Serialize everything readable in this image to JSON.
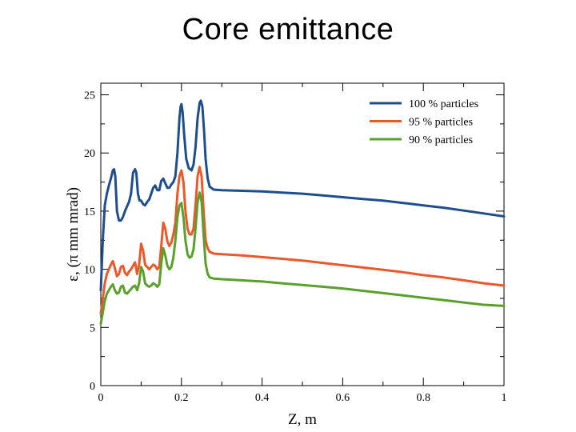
{
  "slide": {
    "title": "Core emittance"
  },
  "chart_data": {
    "type": "line",
    "title": "Core emittance",
    "xlabel": "Z, m",
    "ylabel": "ε, (π mm mrad)",
    "xlim": [
      0,
      1
    ],
    "ylim": [
      0,
      26
    ],
    "xticks": [
      0,
      0.2,
      0.4,
      0.6,
      0.8,
      1
    ],
    "xtick_labels": [
      "0",
      "0.2",
      "0.4",
      "0.6",
      "0.8",
      "1"
    ],
    "yticks": [
      0,
      5,
      10,
      15,
      20,
      25
    ],
    "ytick_labels": [
      "0",
      "5",
      "10",
      "15",
      "20",
      "25"
    ],
    "grid": false,
    "legend_position": "top-right",
    "series": [
      {
        "name": "100 % particles",
        "color": "#1f4e8c",
        "points": [
          [
            0,
            8.2
          ],
          [
            0.005,
            12.5
          ],
          [
            0.01,
            15.5
          ],
          [
            0.015,
            16.5
          ],
          [
            0.02,
            17.2
          ],
          [
            0.025,
            17.8
          ],
          [
            0.03,
            18.5
          ],
          [
            0.033,
            18.6
          ],
          [
            0.036,
            18.0
          ],
          [
            0.04,
            15.0
          ],
          [
            0.045,
            14.2
          ],
          [
            0.05,
            14.2
          ],
          [
            0.055,
            14.5
          ],
          [
            0.06,
            15.0
          ],
          [
            0.07,
            15.8
          ],
          [
            0.075,
            16.5
          ],
          [
            0.08,
            18.3
          ],
          [
            0.085,
            18.6
          ],
          [
            0.088,
            18.3
          ],
          [
            0.092,
            16.5
          ],
          [
            0.096,
            15.9
          ],
          [
            0.1,
            15.9
          ],
          [
            0.105,
            15.6
          ],
          [
            0.11,
            15.5
          ],
          [
            0.115,
            15.8
          ],
          [
            0.12,
            16.0
          ],
          [
            0.125,
            16.5
          ],
          [
            0.13,
            17.0
          ],
          [
            0.135,
            17.2
          ],
          [
            0.14,
            16.8
          ],
          [
            0.145,
            16.8
          ],
          [
            0.15,
            17.6
          ],
          [
            0.155,
            17.8
          ],
          [
            0.16,
            17.4
          ],
          [
            0.165,
            17.0
          ],
          [
            0.17,
            17.0
          ],
          [
            0.175,
            17.3
          ],
          [
            0.18,
            17.5
          ],
          [
            0.185,
            18.0
          ],
          [
            0.19,
            20.0
          ],
          [
            0.195,
            23.0
          ],
          [
            0.198,
            24.0
          ],
          [
            0.2,
            24.2
          ],
          [
            0.203,
            23.5
          ],
          [
            0.207,
            21.5
          ],
          [
            0.212,
            19.5
          ],
          [
            0.218,
            18.7
          ],
          [
            0.225,
            18.5
          ],
          [
            0.23,
            19.0
          ],
          [
            0.235,
            20.5
          ],
          [
            0.24,
            23.0
          ],
          [
            0.245,
            24.3
          ],
          [
            0.248,
            24.5
          ],
          [
            0.252,
            24.0
          ],
          [
            0.256,
            22.0
          ],
          [
            0.26,
            19.5
          ],
          [
            0.265,
            17.8
          ],
          [
            0.27,
            17.1
          ],
          [
            0.28,
            16.85
          ],
          [
            0.3,
            16.8
          ],
          [
            0.35,
            16.75
          ],
          [
            0.4,
            16.7
          ],
          [
            0.45,
            16.6
          ],
          [
            0.5,
            16.5
          ],
          [
            0.55,
            16.35
          ],
          [
            0.6,
            16.2
          ],
          [
            0.65,
            16.05
          ],
          [
            0.7,
            15.9
          ],
          [
            0.75,
            15.7
          ],
          [
            0.8,
            15.5
          ],
          [
            0.85,
            15.3
          ],
          [
            0.9,
            15.05
          ],
          [
            0.95,
            14.8
          ],
          [
            1.0,
            14.55
          ]
        ]
      },
      {
        "name": "95 % particles",
        "color": "#e85a2b",
        "points": [
          [
            0,
            6.2
          ],
          [
            0.005,
            7.5
          ],
          [
            0.01,
            8.8
          ],
          [
            0.015,
            9.6
          ],
          [
            0.02,
            10.0
          ],
          [
            0.025,
            10.4
          ],
          [
            0.03,
            10.7
          ],
          [
            0.035,
            10.1
          ],
          [
            0.04,
            9.4
          ],
          [
            0.045,
            9.6
          ],
          [
            0.05,
            10.2
          ],
          [
            0.055,
            10.3
          ],
          [
            0.06,
            9.7
          ],
          [
            0.065,
            9.5
          ],
          [
            0.07,
            9.8
          ],
          [
            0.075,
            10.0
          ],
          [
            0.08,
            10.3
          ],
          [
            0.085,
            10.6
          ],
          [
            0.09,
            9.6
          ],
          [
            0.095,
            10.4
          ],
          [
            0.1,
            12.2
          ],
          [
            0.105,
            11.6
          ],
          [
            0.11,
            10.4
          ],
          [
            0.115,
            10.2
          ],
          [
            0.12,
            10.0
          ],
          [
            0.125,
            10.2
          ],
          [
            0.13,
            10.4
          ],
          [
            0.135,
            10.3
          ],
          [
            0.14,
            10.0
          ],
          [
            0.145,
            10.2
          ],
          [
            0.15,
            12.0
          ],
          [
            0.155,
            14.0
          ],
          [
            0.16,
            13.5
          ],
          [
            0.165,
            12.4
          ],
          [
            0.17,
            12.0
          ],
          [
            0.175,
            12.3
          ],
          [
            0.18,
            13.0
          ],
          [
            0.185,
            14.0
          ],
          [
            0.19,
            16.5
          ],
          [
            0.195,
            18.0
          ],
          [
            0.2,
            18.5
          ],
          [
            0.205,
            17.5
          ],
          [
            0.21,
            15.0
          ],
          [
            0.215,
            13.5
          ],
          [
            0.22,
            13.0
          ],
          [
            0.225,
            13.0
          ],
          [
            0.23,
            13.5
          ],
          [
            0.235,
            15.5
          ],
          [
            0.24,
            18.0
          ],
          [
            0.245,
            18.8
          ],
          [
            0.25,
            18.0
          ],
          [
            0.255,
            15.0
          ],
          [
            0.26,
            12.5
          ],
          [
            0.265,
            11.8
          ],
          [
            0.27,
            11.5
          ],
          [
            0.28,
            11.35
          ],
          [
            0.3,
            11.3
          ],
          [
            0.35,
            11.2
          ],
          [
            0.4,
            11.05
          ],
          [
            0.45,
            10.9
          ],
          [
            0.5,
            10.75
          ],
          [
            0.55,
            10.55
          ],
          [
            0.6,
            10.35
          ],
          [
            0.65,
            10.15
          ],
          [
            0.7,
            9.95
          ],
          [
            0.75,
            9.75
          ],
          [
            0.8,
            9.5
          ],
          [
            0.85,
            9.3
          ],
          [
            0.9,
            9.05
          ],
          [
            0.95,
            8.8
          ],
          [
            1.0,
            8.6
          ]
        ]
      },
      {
        "name": "90 % particles",
        "color": "#5aa02c",
        "points": [
          [
            0,
            5.3
          ],
          [
            0.005,
            6.3
          ],
          [
            0.01,
            7.3
          ],
          [
            0.015,
            7.9
          ],
          [
            0.02,
            8.2
          ],
          [
            0.025,
            8.5
          ],
          [
            0.03,
            8.7
          ],
          [
            0.035,
            8.2
          ],
          [
            0.04,
            7.9
          ],
          [
            0.045,
            8.0
          ],
          [
            0.05,
            8.5
          ],
          [
            0.055,
            8.6
          ],
          [
            0.06,
            8.0
          ],
          [
            0.065,
            7.9
          ],
          [
            0.07,
            8.1
          ],
          [
            0.075,
            8.3
          ],
          [
            0.08,
            8.5
          ],
          [
            0.085,
            8.6
          ],
          [
            0.09,
            8.2
          ],
          [
            0.095,
            8.8
          ],
          [
            0.1,
            10.2
          ],
          [
            0.105,
            9.8
          ],
          [
            0.11,
            8.8
          ],
          [
            0.115,
            8.6
          ],
          [
            0.12,
            8.5
          ],
          [
            0.125,
            8.6
          ],
          [
            0.13,
            8.8
          ],
          [
            0.135,
            8.7
          ],
          [
            0.14,
            8.5
          ],
          [
            0.145,
            8.7
          ],
          [
            0.15,
            10.5
          ],
          [
            0.155,
            11.8
          ],
          [
            0.16,
            11.2
          ],
          [
            0.165,
            10.3
          ],
          [
            0.17,
            10.0
          ],
          [
            0.175,
            10.2
          ],
          [
            0.18,
            11.0
          ],
          [
            0.185,
            12.5
          ],
          [
            0.19,
            14.5
          ],
          [
            0.195,
            15.5
          ],
          [
            0.2,
            15.7
          ],
          [
            0.205,
            14.5
          ],
          [
            0.21,
            12.5
          ],
          [
            0.215,
            11.3
          ],
          [
            0.22,
            11.0
          ],
          [
            0.225,
            11.1
          ],
          [
            0.23,
            11.7
          ],
          [
            0.235,
            13.5
          ],
          [
            0.24,
            15.8
          ],
          [
            0.245,
            16.6
          ],
          [
            0.25,
            15.8
          ],
          [
            0.255,
            13.0
          ],
          [
            0.26,
            10.5
          ],
          [
            0.265,
            9.6
          ],
          [
            0.27,
            9.3
          ],
          [
            0.28,
            9.2
          ],
          [
            0.3,
            9.15
          ],
          [
            0.35,
            9.05
          ],
          [
            0.4,
            8.95
          ],
          [
            0.45,
            8.8
          ],
          [
            0.5,
            8.65
          ],
          [
            0.55,
            8.5
          ],
          [
            0.6,
            8.35
          ],
          [
            0.65,
            8.15
          ],
          [
            0.7,
            7.95
          ],
          [
            0.75,
            7.75
          ],
          [
            0.8,
            7.55
          ],
          [
            0.85,
            7.35
          ],
          [
            0.9,
            7.15
          ],
          [
            0.95,
            6.95
          ],
          [
            1.0,
            6.85
          ]
        ]
      }
    ]
  }
}
